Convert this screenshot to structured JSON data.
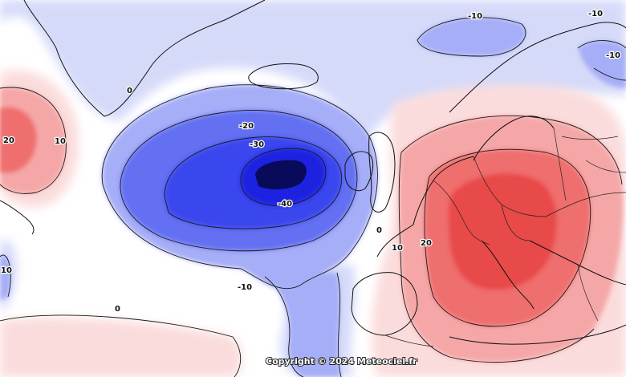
{
  "map": {
    "copyright": "Copyright © 2024 Meteociel.fr",
    "contour_labels": [
      {
        "id": "low-center-40",
        "text": "-40"
      },
      {
        "id": "low-30",
        "text": "-30"
      },
      {
        "id": "low-20",
        "text": "-20"
      },
      {
        "id": "low-10-south",
        "text": "-10"
      },
      {
        "id": "north-10-a",
        "text": "-10"
      },
      {
        "id": "north-10-b",
        "text": "-10"
      },
      {
        "id": "north-10-c",
        "text": "-10"
      },
      {
        "id": "zero-south",
        "text": "0"
      },
      {
        "id": "zero-greenland",
        "text": "0"
      },
      {
        "id": "zero-iberia",
        "text": "0"
      },
      {
        "id": "west-20",
        "text": "20"
      },
      {
        "id": "west-10",
        "text": "10"
      },
      {
        "id": "west-edge-10",
        "text": "10"
      },
      {
        "id": "europe-10",
        "text": "10"
      },
      {
        "id": "europe-20",
        "text": "20"
      }
    ],
    "colors": {
      "strong_negative": "#0a0a5a",
      "negative_40": "#1e22e0",
      "negative_30": "#3a46ee",
      "negative_20": "#6470f2",
      "negative_10": "#a6aef7",
      "weak_negative": "#d6daf9",
      "neutral": "#ffffff",
      "weak_positive": "#fbdcdc",
      "positive_10": "#f5a7a7",
      "positive_20": "#ef6e6e",
      "strong_positive": "#e84a4a"
    }
  }
}
